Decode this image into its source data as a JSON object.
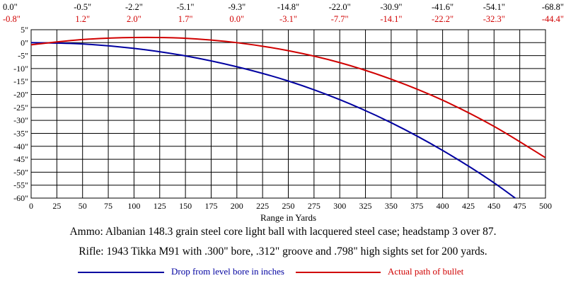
{
  "chart_data": {
    "type": "line",
    "xlabel": "Range in Yards",
    "x_ticks": [
      "0",
      "25",
      "50",
      "75",
      "100",
      "125",
      "150",
      "175",
      "200",
      "225",
      "250",
      "275",
      "300",
      "325",
      "350",
      "375",
      "400",
      "425",
      "450",
      "475",
      "500"
    ],
    "y_ticks": [
      "5\"",
      "0\"",
      "-5\"",
      "-10\"",
      "-15\"",
      "-20\"",
      "-25\"",
      "-30\"",
      "-35\"",
      "-40\"",
      "-45\"",
      "-50\"",
      "-55\"",
      "-60\""
    ],
    "xlim": [
      0,
      500
    ],
    "ylim": [
      -60,
      5
    ],
    "grid": true,
    "top_labels": {
      "drop": [
        "0.0\"",
        "-0.5\"",
        "-2.2\"",
        "-5.1\"",
        "-9.3\"",
        "-14.8\"",
        "-22.0\"",
        "-30.9\"",
        "-41.6\"",
        "-54.1\"",
        "-68.8\""
      ],
      "path": [
        "-0.8\"",
        "1.2\"",
        "2.0\"",
        "1.7\"",
        "0.0\"",
        "-3.1\"",
        "-7.7\"",
        "-14.1\"",
        "-22.2\"",
        "-32.3\"",
        "-44.4\""
      ]
    },
    "label_x": [
      0,
      50,
      100,
      150,
      200,
      250,
      300,
      350,
      400,
      450,
      500
    ],
    "series": [
      {
        "name": "Drop from level bore in inches",
        "color": "#0000a0",
        "x": [
          0,
          50,
          100,
          150,
          200,
          250,
          300,
          350,
          400,
          450,
          500
        ],
        "values": [
          0.0,
          -0.5,
          -2.2,
          -5.1,
          -9.3,
          -14.8,
          -22.0,
          -30.9,
          -41.6,
          -54.1,
          -68.8
        ]
      },
      {
        "name": "Actual path of bullet",
        "color": "#d00000",
        "x": [
          0,
          50,
          100,
          150,
          200,
          250,
          300,
          350,
          400,
          450,
          500
        ],
        "values": [
          -0.8,
          1.2,
          2.0,
          1.7,
          0.0,
          -3.1,
          -7.7,
          -14.1,
          -22.2,
          -32.3,
          -44.4
        ]
      }
    ]
  },
  "captions": {
    "ammo": "Ammo:  Albanian 148.3 grain steel core light ball with lacquered steel case; headstamp 3 over 87.",
    "rifle": "Rifle:  1943 Tikka M91 with .300\" bore, .312\" groove and .798\" high sights set for 200 yards."
  },
  "legend": {
    "drop": "Drop from level bore in inches",
    "path": "Actual path of bullet"
  }
}
